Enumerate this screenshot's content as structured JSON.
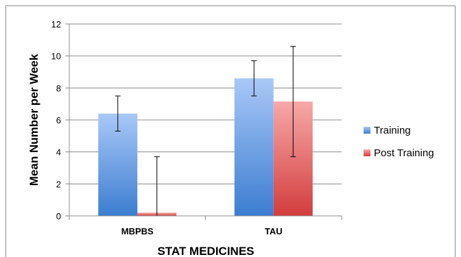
{
  "chart_data": {
    "type": "bar",
    "title": "",
    "xlabel": "STAT MEDICINES",
    "ylabel": "Mean Number per Week",
    "categories": [
      "MBPBS",
      "TAU"
    ],
    "ylim": [
      0,
      12
    ],
    "yticks": [
      0,
      2,
      4,
      6,
      8,
      10,
      12
    ],
    "grid": true,
    "legend_position": "right",
    "series": [
      {
        "name": "Training",
        "values": [
          6.4,
          8.6
        ],
        "error_low": [
          5.3,
          7.5
        ],
        "error_high": [
          7.5,
          9.7
        ],
        "color_top": "#a9c8f7",
        "color_bottom": "#3c7dd1"
      },
      {
        "name": "Post Training",
        "values": [
          0.2,
          7.15
        ],
        "error_low": [
          0.0,
          3.7
        ],
        "error_high": [
          3.7,
          10.6
        ],
        "color_top": "#f7a8a8",
        "color_bottom": "#d33d3d"
      }
    ]
  }
}
